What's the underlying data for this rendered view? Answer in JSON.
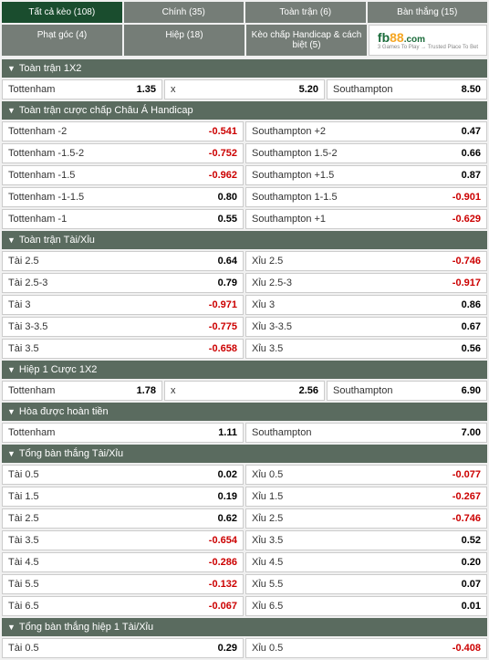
{
  "tabs_row1": [
    {
      "label": "Tất cả kèo (108)",
      "active": true
    },
    {
      "label": "Chính (35)",
      "active": false
    },
    {
      "label": "Toàn trận (6)",
      "active": false
    },
    {
      "label": "Bàn thắng (15)",
      "active": false
    }
  ],
  "tabs_row2": [
    {
      "label": "Phạt góc (4)"
    },
    {
      "label": "Hiệp (18)"
    },
    {
      "label": "Kèo chấp Handicap & cách biệt (5)"
    }
  ],
  "logo": {
    "fb": "fb",
    "num": "88",
    "com": ".com",
    "sub": "3 Games To Play → Trusted Place To Bet"
  },
  "sections": [
    {
      "title": "Toàn trận 1X2",
      "rows": [
        [
          {
            "label": "Tottenham",
            "odds": "1.35",
            "neg": false
          },
          {
            "label": "x",
            "odds": "5.20",
            "neg": false
          },
          {
            "label": "Southampton",
            "odds": "8.50",
            "neg": false
          }
        ]
      ]
    },
    {
      "title": "Toàn trận cược chấp Châu Á Handicap",
      "rows": [
        [
          {
            "label": "Tottenham -2",
            "odds": "-0.541",
            "neg": true
          },
          {
            "label": "Southampton +2",
            "odds": "0.47",
            "neg": false
          }
        ],
        [
          {
            "label": "Tottenham -1.5-2",
            "odds": "-0.752",
            "neg": true
          },
          {
            "label": "Southampton 1.5-2",
            "odds": "0.66",
            "neg": false
          }
        ],
        [
          {
            "label": "Tottenham -1.5",
            "odds": "-0.962",
            "neg": true
          },
          {
            "label": "Southampton +1.5",
            "odds": "0.87",
            "neg": false
          }
        ],
        [
          {
            "label": "Tottenham -1-1.5",
            "odds": "0.80",
            "neg": false
          },
          {
            "label": "Southampton 1-1.5",
            "odds": "-0.901",
            "neg": true
          }
        ],
        [
          {
            "label": "Tottenham -1",
            "odds": "0.55",
            "neg": false
          },
          {
            "label": "Southampton +1",
            "odds": "-0.629",
            "neg": true
          }
        ]
      ]
    },
    {
      "title": "Toàn trận Tài/Xỉu",
      "rows": [
        [
          {
            "label": "Tài 2.5",
            "odds": "0.64",
            "neg": false
          },
          {
            "label": "Xỉu 2.5",
            "odds": "-0.746",
            "neg": true
          }
        ],
        [
          {
            "label": "Tài 2.5-3",
            "odds": "0.79",
            "neg": false
          },
          {
            "label": "Xỉu 2.5-3",
            "odds": "-0.917",
            "neg": true
          }
        ],
        [
          {
            "label": "Tài 3",
            "odds": "-0.971",
            "neg": true
          },
          {
            "label": "Xỉu 3",
            "odds": "0.86",
            "neg": false
          }
        ],
        [
          {
            "label": "Tài 3-3.5",
            "odds": "-0.775",
            "neg": true
          },
          {
            "label": "Xỉu 3-3.5",
            "odds": "0.67",
            "neg": false
          }
        ],
        [
          {
            "label": "Tài 3.5",
            "odds": "-0.658",
            "neg": true
          },
          {
            "label": "Xỉu 3.5",
            "odds": "0.56",
            "neg": false
          }
        ]
      ]
    },
    {
      "title": "Hiệp 1 Cược 1X2",
      "rows": [
        [
          {
            "label": "Tottenham",
            "odds": "1.78",
            "neg": false
          },
          {
            "label": "x",
            "odds": "2.56",
            "neg": false
          },
          {
            "label": "Southampton",
            "odds": "6.90",
            "neg": false
          }
        ]
      ]
    },
    {
      "title": "Hòa được hoàn tiền",
      "rows": [
        [
          {
            "label": "Tottenham",
            "odds": "1.11",
            "neg": false
          },
          {
            "label": "Southampton",
            "odds": "7.00",
            "neg": false
          }
        ]
      ]
    },
    {
      "title": "Tổng bàn thắng Tài/Xỉu",
      "rows": [
        [
          {
            "label": "Tài 0.5",
            "odds": "0.02",
            "neg": false
          },
          {
            "label": "Xỉu 0.5",
            "odds": "-0.077",
            "neg": true
          }
        ],
        [
          {
            "label": "Tài 1.5",
            "odds": "0.19",
            "neg": false
          },
          {
            "label": "Xỉu 1.5",
            "odds": "-0.267",
            "neg": true
          }
        ],
        [
          {
            "label": "Tài 2.5",
            "odds": "0.62",
            "neg": false
          },
          {
            "label": "Xỉu 2.5",
            "odds": "-0.746",
            "neg": true
          }
        ],
        [
          {
            "label": "Tài 3.5",
            "odds": "-0.654",
            "neg": true
          },
          {
            "label": "Xỉu 3.5",
            "odds": "0.52",
            "neg": false
          }
        ],
        [
          {
            "label": "Tài 4.5",
            "odds": "-0.286",
            "neg": true
          },
          {
            "label": "Xỉu 4.5",
            "odds": "0.20",
            "neg": false
          }
        ],
        [
          {
            "label": "Tài 5.5",
            "odds": "-0.132",
            "neg": true
          },
          {
            "label": "Xỉu 5.5",
            "odds": "0.07",
            "neg": false
          }
        ],
        [
          {
            "label": "Tài 6.5",
            "odds": "-0.067",
            "neg": true
          },
          {
            "label": "Xỉu 6.5",
            "odds": "0.01",
            "neg": false
          }
        ]
      ]
    },
    {
      "title": "Tổng bàn thắng hiệp 1 Tài/Xỉu",
      "rows": [
        [
          {
            "label": "Tài 0.5",
            "odds": "0.29",
            "neg": false
          },
          {
            "label": "Xỉu 0.5",
            "odds": "-0.408",
            "neg": true
          }
        ]
      ]
    }
  ]
}
